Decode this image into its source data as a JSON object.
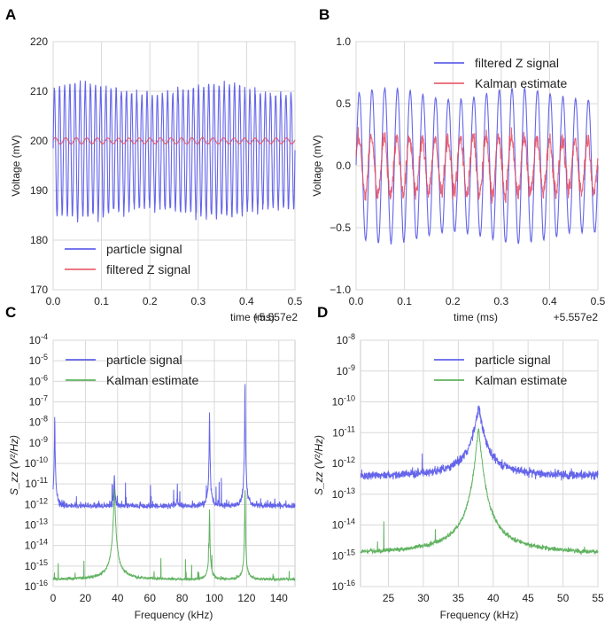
{
  "figure": {
    "panel_labels": [
      "A",
      "B",
      "C",
      "D"
    ]
  },
  "chart_data": [
    {
      "id": "A",
      "type": "line",
      "panel_label": "A",
      "xlabel": "time (ms)",
      "ylabel": "Voltage (mV)",
      "offset_label": "+5.557e2",
      "xlim": [
        0.0,
        0.5
      ],
      "ylim": [
        170,
        220
      ],
      "xticks": [
        "0.0",
        "0.1",
        "0.2",
        "0.3",
        "0.4",
        "0.5"
      ],
      "yticks": [
        "170",
        "180",
        "190",
        "200",
        "210",
        "220"
      ],
      "grid": true,
      "legend_position": "lower-left",
      "series": [
        {
          "name": "particle signal",
          "color": "#4a4ae8",
          "center": 198,
          "amplitude": 12.5,
          "cycles": 47,
          "noise": 1.0
        },
        {
          "name": "filtered Z signal",
          "color": "#e84a5a",
          "center": 200,
          "amplitude": 0.6,
          "cycles": 23,
          "noise": 0.05
        }
      ]
    },
    {
      "id": "B",
      "type": "line",
      "panel_label": "B",
      "xlabel": "time (ms)",
      "ylabel": "Voltage (mV)",
      "offset_label": "+5.557e2",
      "xlim": [
        0.0,
        0.5
      ],
      "ylim": [
        -1.0,
        1.0
      ],
      "xticks": [
        "0.0",
        "0.1",
        "0.2",
        "0.3",
        "0.4",
        "0.5"
      ],
      "yticks": [
        "−1.0",
        "−0.5",
        "0.0",
        "0.5",
        "1.0"
      ],
      "grid": true,
      "legend_position": "top-right",
      "series": [
        {
          "name": "filtered Z signal",
          "color": "#4a4ae8",
          "center": 0.0,
          "amplitude": 0.58,
          "cycles": 19,
          "noise": 0.01
        },
        {
          "name": "Kalman estimate",
          "color": "#e84a5a",
          "center": 0.0,
          "amplitude": 0.22,
          "cycles": 19,
          "noise": 0.07
        }
      ]
    },
    {
      "id": "C",
      "type": "line",
      "panel_label": "C",
      "xlabel": "Frequency (kHz)",
      "ylabel": "S_zz (V²/Hz)",
      "yscale": "log",
      "xlim": [
        0,
        150
      ],
      "ylim_exp": [
        -16,
        -4
      ],
      "xticks": [
        "0",
        "20",
        "40",
        "60",
        "80",
        "100",
        "120",
        "140"
      ],
      "ytick_exponents": [
        "-4",
        "-5",
        "-6",
        "-7",
        "-8",
        "-9",
        "-10",
        "-11",
        "-12",
        "-13",
        "-14",
        "-15",
        "-16"
      ],
      "grid": true,
      "legend_position": "top-right",
      "series": [
        {
          "name": "particle signal",
          "color": "#4a4ae8",
          "floor_exp": -12.2,
          "noise_exp": 0.35,
          "peaks": [
            [
              38,
              -10.5
            ],
            [
              77,
              -11.5
            ],
            [
              97,
              -7.2
            ],
            [
              119,
              -5.6
            ],
            [
              1,
              -7.5
            ]
          ]
        },
        {
          "name": "Kalman estimate",
          "color": "#45a645",
          "floor_exp": -15.7,
          "noise_exp": 0.15,
          "peaks": [
            [
              38,
              -11.2
            ],
            [
              97,
              -12.0
            ],
            [
              119,
              -11.0
            ]
          ]
        }
      ]
    },
    {
      "id": "D",
      "type": "line",
      "panel_label": "D",
      "xlabel": "Frequency (kHz)",
      "ylabel": "S_zz (V²/Hz)",
      "yscale": "log",
      "xlim": [
        21,
        55
      ],
      "ylim_exp": [
        -16,
        -8
      ],
      "xticks": [
        "25",
        "30",
        "35",
        "40",
        "45",
        "50",
        "55"
      ],
      "ytick_exponents": [
        "-8",
        "-9",
        "-10",
        "-11",
        "-12",
        "-13",
        "-14",
        "-15",
        "-16"
      ],
      "grid": true,
      "legend_position": "top-right",
      "series": [
        {
          "name": "particle signal",
          "color": "#4a4ae8",
          "floor_exp": -12.5,
          "noise_exp": 0.3,
          "peaks": [
            [
              37.9,
              -10.2
            ]
          ]
        },
        {
          "name": "Kalman estimate",
          "color": "#45a645",
          "floor_exp": -15.0,
          "noise_exp": 0.15,
          "peaks": [
            [
              37.9,
              -10.9
            ]
          ]
        }
      ]
    }
  ]
}
